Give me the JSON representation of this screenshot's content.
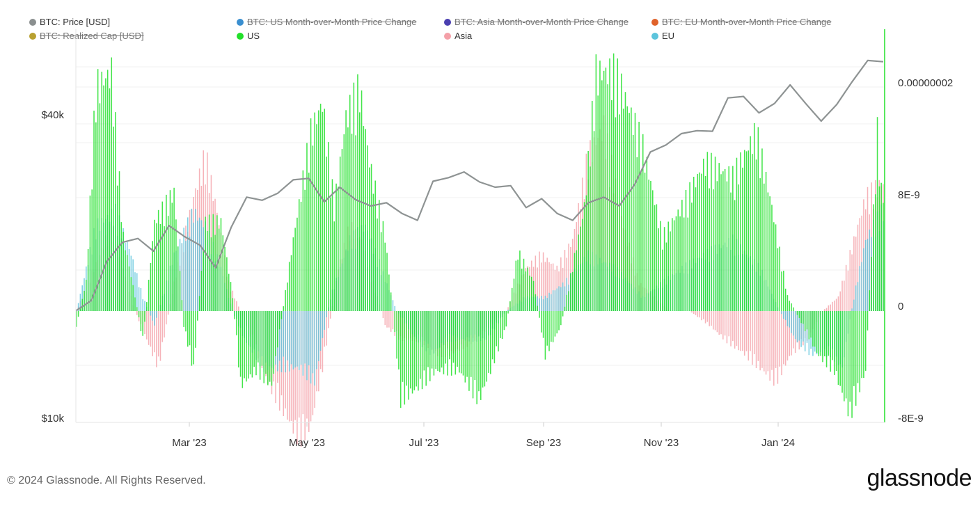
{
  "legend": [
    {
      "label": "BTC: Price [USD]",
      "color": "#8a8f8f",
      "active": true
    },
    {
      "label": "BTC: US Month-over-Month Price Change",
      "color": "#3a8fd0",
      "active": false
    },
    {
      "label": "BTC: Asia Month-over-Month Price Change",
      "color": "#4a3fb0",
      "active": false
    },
    {
      "label": "BTC: EU Month-over-Month Price Change",
      "color": "#e0622a",
      "active": false
    },
    {
      "label": "BTC: Realized Cap [USD]",
      "color": "#b8a030",
      "active": false
    },
    {
      "label": "US",
      "color": "#22e02a",
      "active": true
    },
    {
      "label": "Asia",
      "color": "#f4a0a8",
      "active": true
    },
    {
      "label": "EU",
      "color": "#5cc4dc",
      "active": true
    }
  ],
  "footer": {
    "copyright": "© 2024 Glassnode. All Rights Reserved.",
    "logo": "glassnode"
  },
  "chart_data": {
    "type": "line+bar",
    "x_ticks": [
      "Mar '23",
      "May '23",
      "Jul '23",
      "Sep '23",
      "Nov '23",
      "Jan '24"
    ],
    "left_axis": {
      "ticks": [
        "$40k",
        "$10k"
      ],
      "scale": "log"
    },
    "right_axis": {
      "ticks": [
        "0.00000002",
        "8E-9",
        "0",
        "-8E-9"
      ],
      "range": [
        -8e-09,
        2.4e-08
      ]
    },
    "price_series": {
      "name": "BTC: Price [USD]",
      "points": [
        [
          "Jan '23",
          16600
        ],
        [
          "Jan 10",
          17400
        ],
        [
          "Jan 15",
          20800
        ],
        [
          "Jan 22",
          22700
        ],
        [
          "Feb 1",
          23100
        ],
        [
          "Feb 10",
          21800
        ],
        [
          "Feb 16",
          24500
        ],
        [
          "Feb 25",
          23300
        ],
        [
          "Mar 5",
          22400
        ],
        [
          "Mar 10",
          20200
        ],
        [
          "Mar 14",
          24300
        ],
        [
          "Mar 20",
          27900
        ],
        [
          "Mar 25",
          27500
        ],
        [
          "Apr 1",
          28400
        ],
        [
          "Apr 11",
          30200
        ],
        [
          "Apr 14",
          30400
        ],
        [
          "Apr 21",
          27300
        ],
        [
          "Apr 30",
          29200
        ],
        [
          "May 10",
          27600
        ],
        [
          "May 20",
          26800
        ],
        [
          "May 31",
          27200
        ],
        [
          "Jun 10",
          25900
        ],
        [
          "Jun 15",
          25100
        ],
        [
          "Jun 21",
          30000
        ],
        [
          "Jun 30",
          30500
        ],
        [
          "Jul 13",
          31300
        ],
        [
          "Jul 20",
          29900
        ],
        [
          "Aug 1",
          29200
        ],
        [
          "Aug 10",
          29400
        ],
        [
          "Aug 17",
          26600
        ],
        [
          "Aug 29",
          27700
        ],
        [
          "Sep 1",
          25900
        ],
        [
          "Sep 11",
          25100
        ],
        [
          "Sep 20",
          27200
        ],
        [
          "Oct 1",
          27900
        ],
        [
          "Oct 11",
          26800
        ],
        [
          "Oct 20",
          29600
        ],
        [
          "Oct 24",
          34300
        ],
        [
          "Nov 1",
          35400
        ],
        [
          "Nov 9",
          37300
        ],
        [
          "Nov 15",
          37800
        ],
        [
          "Nov 24",
          37700
        ],
        [
          "Dec 5",
          43900
        ],
        [
          "Dec 8",
          44200
        ],
        [
          "Dec 18",
          41000
        ],
        [
          "Dec 28",
          42800
        ],
        [
          "Jan 11",
          46600
        ],
        [
          "Jan 12",
          42800
        ],
        [
          "Jan 23",
          39500
        ],
        [
          "Feb 1",
          42600
        ],
        [
          "Feb 9",
          47300
        ],
        [
          "Feb 15",
          52100
        ],
        [
          "Feb 20",
          51800
        ]
      ]
    },
    "bar_series": [
      {
        "name": "US",
        "color": "#22e02a"
      },
      {
        "name": "Asia",
        "color": "#f4a0a8"
      },
      {
        "name": "EU",
        "color": "#5cc4dc"
      }
    ],
    "bar_profile": {
      "US": [
        [
          0,
          -1
        ],
        [
          5,
          2
        ],
        [
          10,
          15
        ],
        [
          18,
          16
        ],
        [
          24,
          5
        ],
        [
          30,
          1
        ],
        [
          34,
          -2
        ],
        [
          40,
          6
        ],
        [
          50,
          8
        ],
        [
          55,
          -1
        ],
        [
          60,
          -4
        ],
        [
          66,
          6
        ],
        [
          74,
          6
        ],
        [
          80,
          1
        ],
        [
          84,
          -5
        ],
        [
          92,
          -4
        ],
        [
          100,
          -5
        ],
        [
          110,
          4
        ],
        [
          120,
          12
        ],
        [
          126,
          14
        ],
        [
          132,
          7
        ],
        [
          138,
          13
        ],
        [
          145,
          15
        ],
        [
          150,
          10
        ],
        [
          158,
          5
        ],
        [
          162,
          0
        ],
        [
          166,
          -6
        ],
        [
          176,
          -5
        ],
        [
          184,
          -4
        ],
        [
          196,
          -4
        ],
        [
          206,
          -6
        ],
        [
          212,
          -4
        ],
        [
          220,
          -1
        ],
        [
          226,
          4
        ],
        [
          234,
          2
        ],
        [
          240,
          -3
        ],
        [
          248,
          -1
        ],
        [
          260,
          7
        ],
        [
          266,
          16
        ],
        [
          276,
          16
        ],
        [
          290,
          11
        ],
        [
          300,
          5
        ],
        [
          310,
          7
        ],
        [
          322,
          10
        ],
        [
          336,
          9
        ],
        [
          348,
          12
        ],
        [
          356,
          7
        ],
        [
          364,
          1
        ],
        [
          372,
          -1
        ],
        [
          380,
          -3
        ],
        [
          388,
          -4
        ],
        [
          396,
          -7
        ],
        [
          404,
          -4
        ],
        [
          410,
          12
        ],
        [
          412,
          8
        ]
      ],
      "Asia": [
        [
          0,
          0
        ],
        [
          6,
          2
        ],
        [
          12,
          4
        ],
        [
          18,
          6
        ],
        [
          24,
          3
        ],
        [
          30,
          0
        ],
        [
          36,
          -2
        ],
        [
          42,
          -4
        ],
        [
          50,
          2
        ],
        [
          60,
          8
        ],
        [
          66,
          11
        ],
        [
          72,
          7
        ],
        [
          78,
          2
        ],
        [
          84,
          0
        ],
        [
          90,
          -2
        ],
        [
          98,
          -5
        ],
        [
          106,
          -7
        ],
        [
          114,
          -9
        ],
        [
          120,
          -8
        ],
        [
          126,
          -4
        ],
        [
          134,
          3
        ],
        [
          140,
          6
        ],
        [
          146,
          5
        ],
        [
          152,
          2
        ],
        [
          158,
          -1
        ],
        [
          166,
          -2
        ],
        [
          176,
          -2
        ],
        [
          184,
          -3
        ],
        [
          192,
          -3
        ],
        [
          204,
          -2
        ],
        [
          212,
          -1
        ],
        [
          220,
          0
        ],
        [
          230,
          3
        ],
        [
          238,
          4
        ],
        [
          246,
          3
        ],
        [
          254,
          5
        ],
        [
          262,
          11
        ],
        [
          270,
          13
        ],
        [
          280,
          6
        ],
        [
          288,
          2
        ],
        [
          296,
          1
        ],
        [
          304,
          0
        ],
        [
          314,
          0
        ],
        [
          324,
          -1
        ],
        [
          332,
          -2
        ],
        [
          342,
          -3
        ],
        [
          350,
          -4
        ],
        [
          358,
          -5
        ],
        [
          366,
          -3
        ],
        [
          374,
          -2
        ],
        [
          382,
          0
        ],
        [
          390,
          1
        ],
        [
          398,
          5
        ],
        [
          404,
          8
        ],
        [
          412,
          9
        ]
      ],
      "EU": [
        [
          0,
          0
        ],
        [
          10,
          6
        ],
        [
          20,
          7
        ],
        [
          28,
          4
        ],
        [
          34,
          1
        ],
        [
          40,
          -1
        ],
        [
          50,
          4
        ],
        [
          60,
          7
        ],
        [
          66,
          6
        ],
        [
          74,
          3
        ],
        [
          80,
          0
        ],
        [
          86,
          -2
        ],
        [
          96,
          -4
        ],
        [
          106,
          -4
        ],
        [
          114,
          -4
        ],
        [
          122,
          -5
        ],
        [
          130,
          1
        ],
        [
          140,
          5
        ],
        [
          148,
          6
        ],
        [
          156,
          3
        ],
        [
          164,
          0
        ],
        [
          174,
          -2
        ],
        [
          182,
          -3
        ],
        [
          190,
          -2
        ],
        [
          200,
          -2
        ],
        [
          210,
          -2
        ],
        [
          220,
          0
        ],
        [
          230,
          1
        ],
        [
          240,
          1
        ],
        [
          250,
          2
        ],
        [
          262,
          4
        ],
        [
          276,
          3
        ],
        [
          290,
          1
        ],
        [
          300,
          2
        ],
        [
          310,
          3
        ],
        [
          322,
          4
        ],
        [
          336,
          5
        ],
        [
          350,
          3
        ],
        [
          360,
          0
        ],
        [
          368,
          -2
        ],
        [
          376,
          -3
        ],
        [
          386,
          -3
        ],
        [
          392,
          -4
        ],
        [
          398,
          1
        ],
        [
          404,
          5
        ],
        [
          412,
          7
        ]
      ]
    }
  }
}
